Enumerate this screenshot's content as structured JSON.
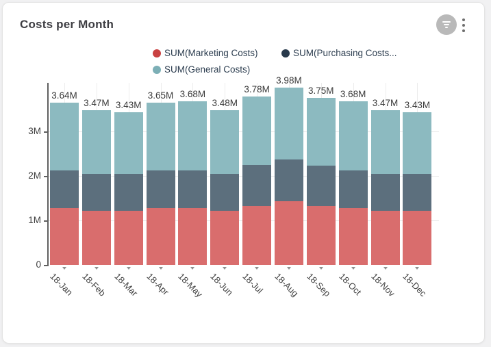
{
  "header": {
    "title": "Costs per Month",
    "icons": [
      "filter-icon",
      "kebab-menu-icon"
    ]
  },
  "legend": {
    "items": [
      {
        "label": "SUM(Marketing Costs)",
        "color": "#c94141"
      },
      {
        "label": "SUM(Purchasing Costs...",
        "color": "#28394b"
      },
      {
        "label": "SUM(General Costs)",
        "color": "#7cafb6"
      }
    ]
  },
  "chart_data": {
    "type": "bar",
    "stacked": true,
    "title": "Costs per Month",
    "xlabel": "",
    "ylabel": "",
    "unit": "M",
    "ylim": [
      0,
      4.1
    ],
    "grid": true,
    "legend_position": "top",
    "categories": [
      "18-Jan",
      "18-Feb",
      "18-Mar",
      "18-Apr",
      "18-May",
      "18-Jun",
      "18-Jul",
      "18-Aug",
      "18-Sep",
      "18-Oct",
      "18-Nov",
      "18-Dec"
    ],
    "series": [
      {
        "name": "SUM(Marketing Costs)",
        "color": "#d96d6d",
        "values": [
          1.28,
          1.21,
          1.21,
          1.28,
          1.27,
          1.22,
          1.33,
          1.43,
          1.33,
          1.28,
          1.22,
          1.21
        ]
      },
      {
        "name": "SUM(Purchasing Costs)",
        "color": "#5c6f7d",
        "values": [
          0.84,
          0.84,
          0.83,
          0.85,
          0.85,
          0.83,
          0.91,
          0.94,
          0.9,
          0.85,
          0.82,
          0.83
        ]
      },
      {
        "name": "SUM(General Costs)",
        "color": "#8cbac0",
        "values": [
          1.52,
          1.42,
          1.39,
          1.52,
          1.56,
          1.43,
          1.54,
          1.61,
          1.52,
          1.55,
          1.43,
          1.39
        ]
      }
    ],
    "totals": [
      "3.64M",
      "3.47M",
      "3.43M",
      "3.65M",
      "3.68M",
      "3.48M",
      "3.78M",
      "3.98M",
      "3.75M",
      "3.68M",
      "3.47M",
      "3.43M"
    ],
    "y_ticks": [
      "0",
      "1M",
      "2M",
      "3M"
    ]
  }
}
